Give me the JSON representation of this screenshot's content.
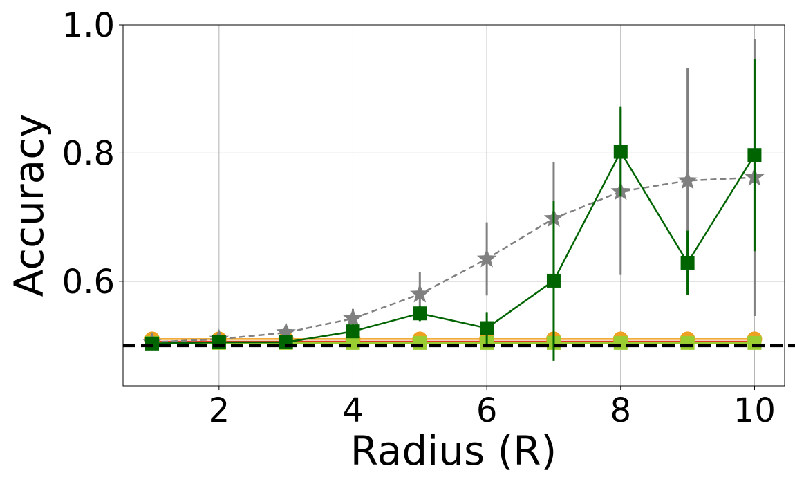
{
  "chart_data": {
    "type": "line",
    "x_label": "Radius (R)",
    "y_label": "Accuracy",
    "x": [
      1,
      2,
      3,
      4,
      5,
      6,
      7,
      8,
      9,
      10
    ],
    "xlim": [
      0.566,
      10.45
    ],
    "ylim": [
      0.437,
      1.0
    ],
    "xticks": [
      2,
      4,
      6,
      8,
      10
    ],
    "yticks": [
      0.6,
      0.8,
      {
        "value": 1.0,
        "label": "1.0"
      }
    ],
    "grid": true,
    "reference_line": 0.5,
    "series": [
      {
        "color": "#e03a1e",
        "marker": "none",
        "dash": false,
        "values": [
          0.506,
          0.506,
          0.506,
          0.506,
          0.506,
          0.506,
          0.506,
          0.506,
          0.506,
          0.506
        ],
        "errors": null
      },
      {
        "color": "#f0a020",
        "marker": "circle",
        "dash": false,
        "values": [
          0.51,
          0.51,
          0.51,
          0.51,
          0.51,
          0.51,
          0.51,
          0.51,
          0.51,
          0.51
        ],
        "errors": null
      },
      {
        "color": "#9acd32",
        "marker": "square",
        "dash": false,
        "values": [
          0.504,
          0.504,
          0.504,
          0.504,
          0.504,
          0.504,
          0.504,
          0.504,
          0.504,
          0.504
        ],
        "errors": null
      },
      {
        "color": "#808080",
        "marker": "star",
        "dash": true,
        "values": [
          0.505,
          0.51,
          0.52,
          0.542,
          0.58,
          0.635,
          0.698,
          0.74,
          0.757,
          0.762
        ],
        "errors": [
          0.003,
          0.004,
          0.006,
          0.015,
          0.035,
          0.057,
          0.088,
          0.13,
          0.175,
          0.216
        ]
      },
      {
        "color": "#006400",
        "marker": "square",
        "dash": false,
        "values": [
          0.503,
          0.505,
          0.505,
          0.522,
          0.55,
          0.527,
          0.601,
          0.802,
          0.629,
          0.797
        ],
        "errors": [
          0.002,
          0.003,
          0.004,
          0.01,
          0.012,
          0.025,
          0.125,
          0.07,
          0.05,
          0.15
        ]
      }
    ]
  }
}
